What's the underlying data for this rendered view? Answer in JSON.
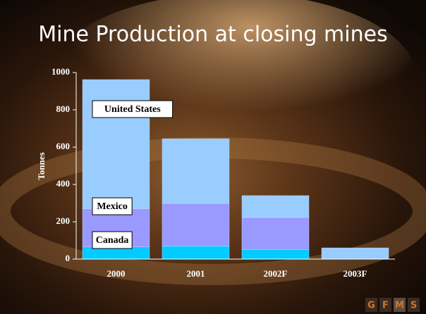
{
  "chart_data": {
    "type": "stacked_bar",
    "title": "Mine Production at closing mines",
    "y_label": "Tonnes",
    "categories": [
      "2000",
      "2001",
      "2002F",
      "2003F"
    ],
    "series": [
      {
        "name": "Canada",
        "color": "#00ccff",
        "values": [
          65,
          70,
          50,
          0
        ]
      },
      {
        "name": "Mexico",
        "color": "#9999ff",
        "values": [
          205,
          228,
          173,
          0
        ]
      },
      {
        "name": "United States",
        "color": "#99ccff",
        "values": [
          692,
          347,
          117,
          60
        ]
      }
    ],
    "ylim": [
      0,
      1000
    ],
    "yticks": [
      0,
      200,
      400,
      600,
      800,
      1000
    ]
  },
  "logo": [
    "G",
    "F",
    "M",
    "S"
  ]
}
